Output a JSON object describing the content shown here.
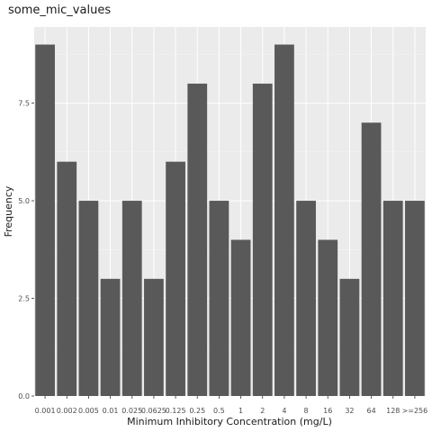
{
  "chart_data": {
    "type": "bar",
    "title": "some_mic_values",
    "xlabel": "Minimum Inhibitory Concentration (mg/L)",
    "ylabel": "Frequency",
    "categories": [
      "0.001",
      "0.002",
      "0.005",
      "0.01",
      "0.025",
      "0.0625",
      "0.125",
      "0.25",
      "0.5",
      "1",
      "2",
      "4",
      "8",
      "16",
      "32",
      "64",
      "128",
      ">=256"
    ],
    "values": [
      9,
      6,
      5,
      3,
      5,
      3,
      6,
      8,
      5,
      4,
      8,
      9,
      5,
      4,
      3,
      7,
      5,
      5
    ],
    "ylim": [
      0,
      9.45
    ],
    "yticks": [
      0.0,
      2.5,
      5.0,
      7.5
    ],
    "ytick_labels": [
      "0.0",
      "2.5",
      "5.0",
      "7.5"
    ],
    "grid": true,
    "legend": "none",
    "colors": {
      "panel": "#ebebeb",
      "grid_major": "#ffffff",
      "bar": "#595959",
      "tick_text": "#4d4d4d",
      "title_text": "#1a1a1a"
    }
  }
}
